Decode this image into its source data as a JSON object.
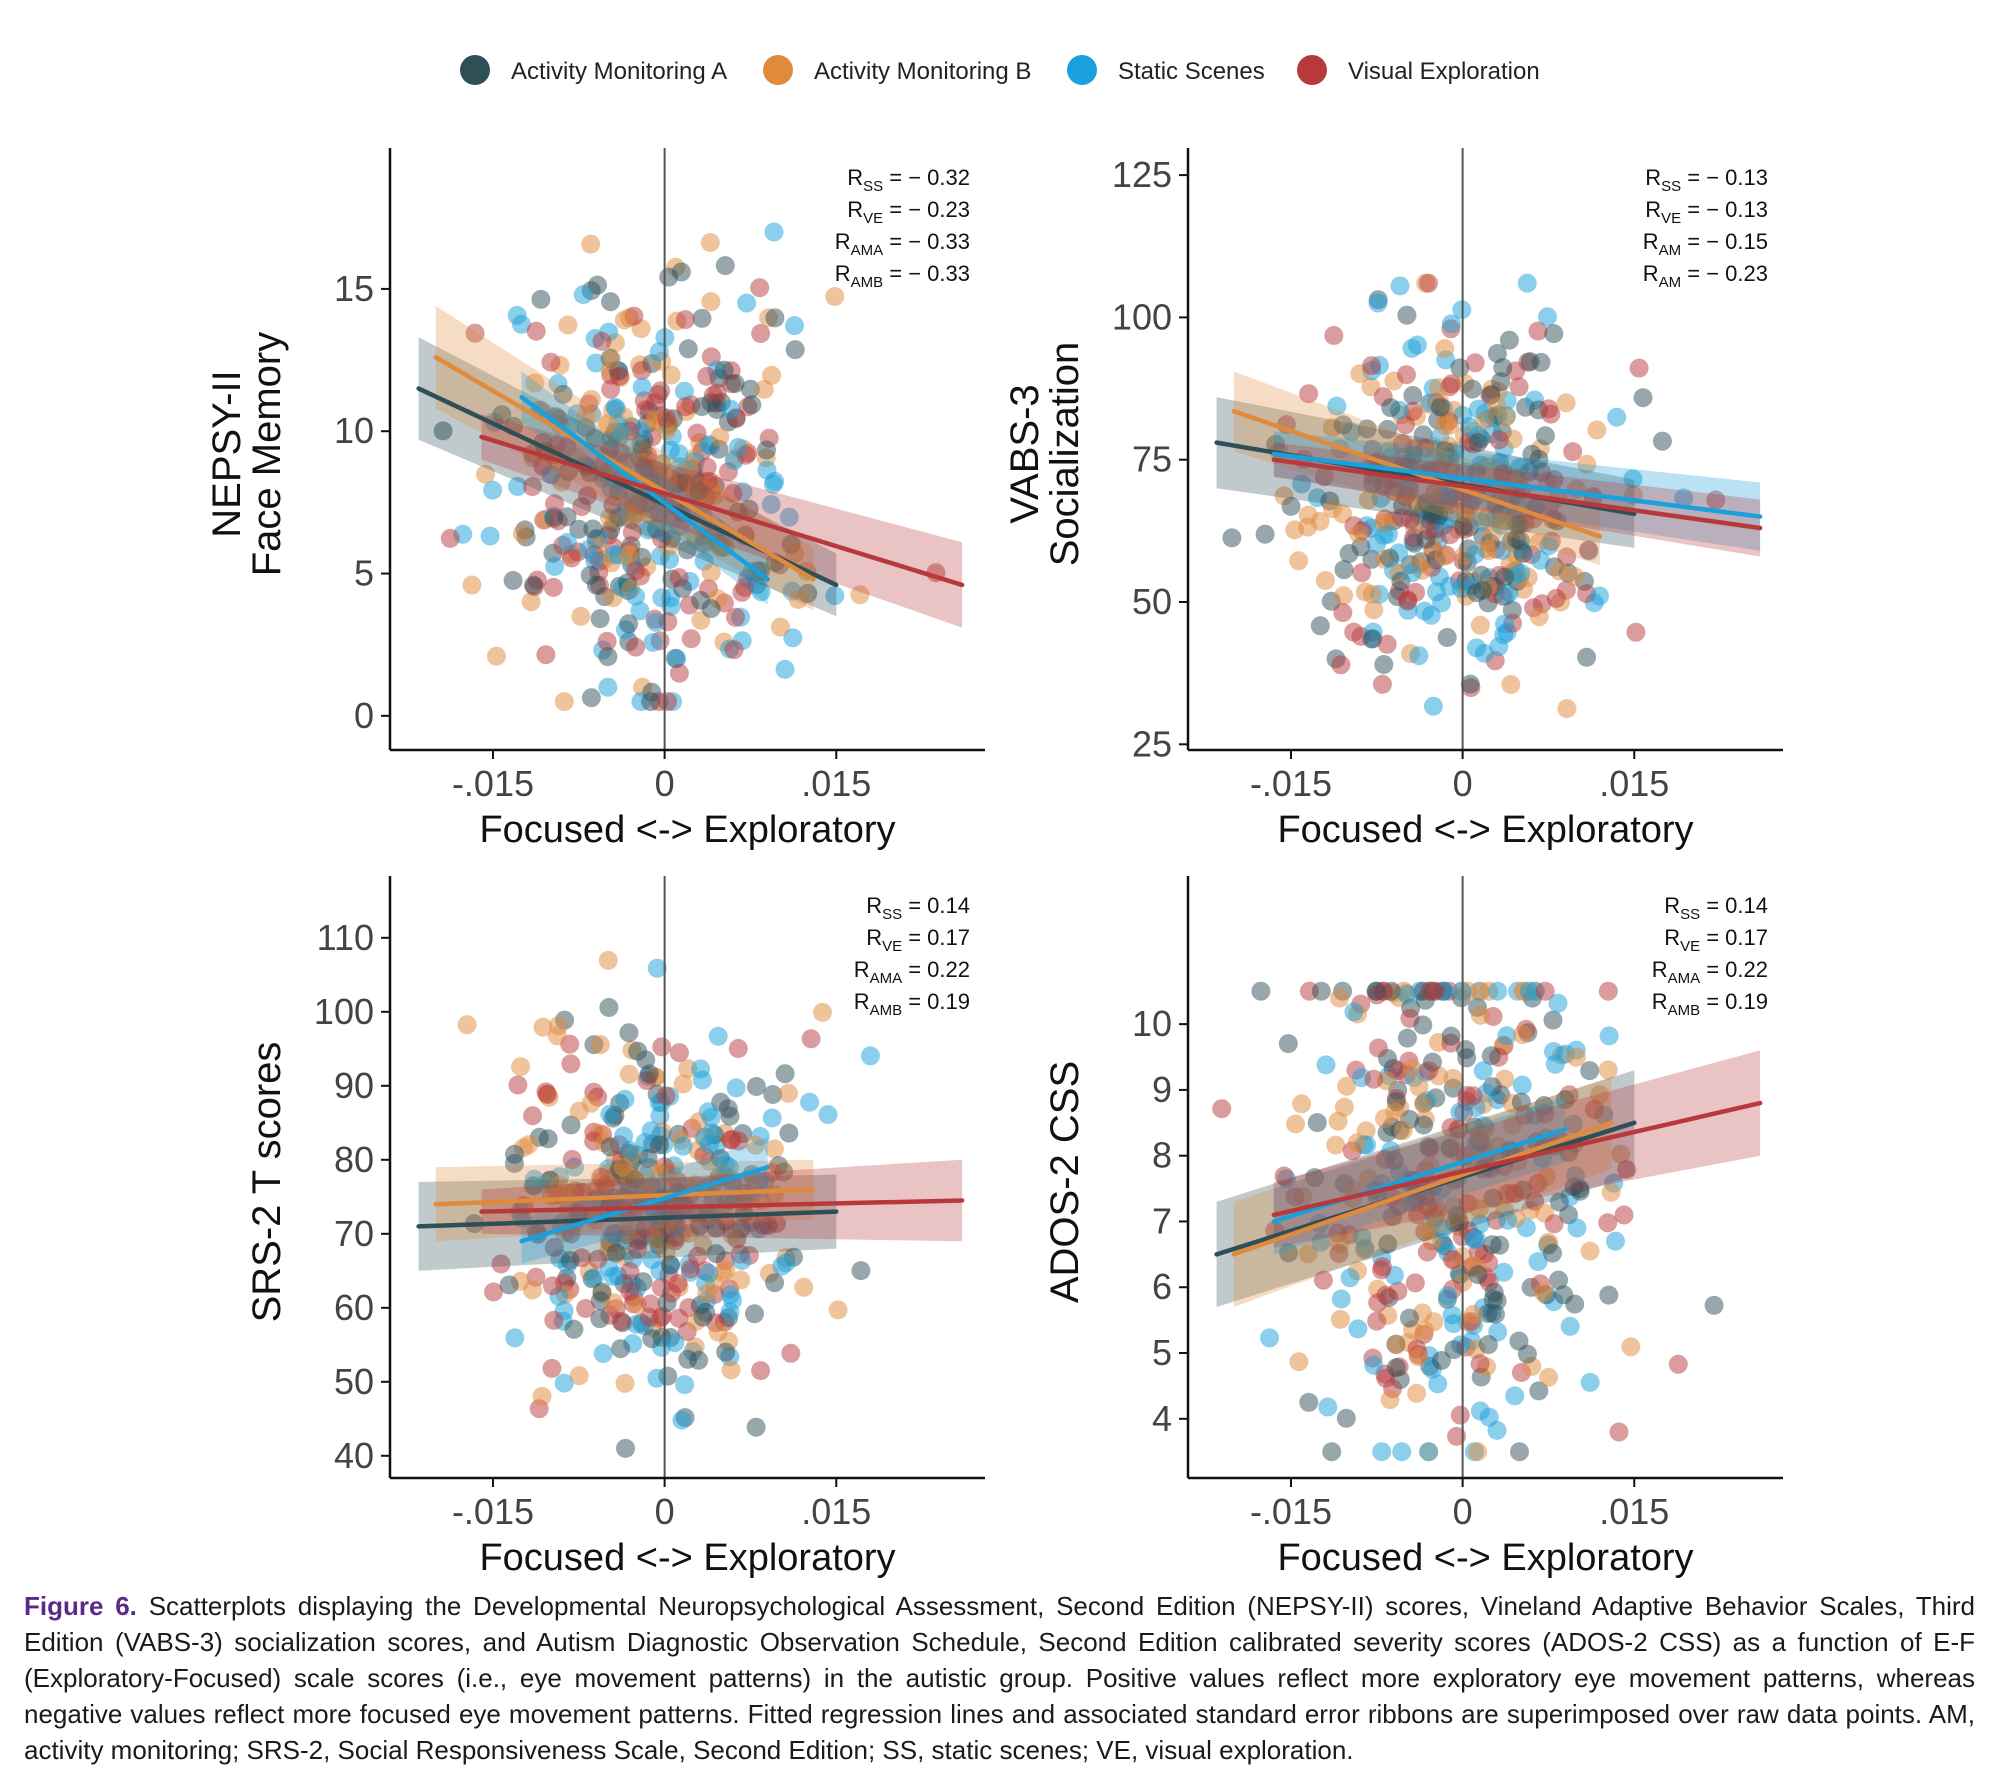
{
  "legend": [
    {
      "name": "Activity Monitoring A",
      "color": "#2f4f57"
    },
    {
      "name": "Activity Monitoring B",
      "color": "#e08a3c"
    },
    {
      "name": "Static Scenes",
      "color": "#1aa0da"
    },
    {
      "name": "Visual Exploration",
      "color": "#b8393b"
    }
  ],
  "caption": {
    "label": "Figure 6.",
    "text": "Scatterplots displaying the Developmental Neuropsychological Assessment, Second Edition (NEPSY-II) scores, Vineland Adaptive Behavior Scales, Third Edition (VABS-3) socialization scores, and Autism Diagnostic Observation Schedule, Second Edition calibrated severity scores (ADOS-2 CSS) as a function of E-F (Exploratory-Focused) scale scores (i.e., eye movement patterns) in the autistic group. Positive values reflect more exploratory eye movement patterns, whereas negative values reflect more focused eye movement patterns. Fitted regression lines and associated standard error ribbons are superimposed over raw data points. AM, activity monitoring; SRS-2, Social Responsiveness Scale, Second Edition; SS, static scenes; VE, visual exploration."
  },
  "chart_data": [
    {
      "type": "scatter",
      "ylabel": [
        "NEPSY-II",
        "Face Memory"
      ],
      "xlabel": "Focused <-> Exploratory",
      "xlim": [
        -0.024,
        0.028
      ],
      "ylim": [
        -1.2,
        19.6
      ],
      "xticks": [
        -0.015,
        0,
        0.015
      ],
      "xtick_labels": [
        "-.015",
        "0",
        ".015"
      ],
      "yticks": [
        0,
        5,
        10,
        15
      ],
      "ytick_labels": [
        "0",
        "5",
        "10",
        "15"
      ],
      "stats": [
        {
          "sym": "R",
          "sub": "SS",
          "val": "= − 0.32"
        },
        {
          "sym": "R",
          "sub": "VE",
          "val": "= − 0.23"
        },
        {
          "sym": "R",
          "sub": "AMA",
          "val": "= − 0.33"
        },
        {
          "sym": "R",
          "sub": "AMB",
          "val": "= − 0.33"
        }
      ],
      "series": [
        {
          "name": "Activity Monitoring A",
          "fit": {
            "x": [
              -0.0215,
              0.015
            ],
            "y": [
              11.5,
              4.6
            ],
            "se": [
              1.8,
              1.1
            ]
          }
        },
        {
          "name": "Activity Monitoring B",
          "fit": {
            "x": [
              -0.02,
              0.013
            ],
            "y": [
              12.6,
              4.8
            ],
            "se": [
              1.8,
              1.1
            ]
          }
        },
        {
          "name": "Static Scenes",
          "fit": {
            "x": [
              -0.0125,
              0.009
            ],
            "y": [
              11.2,
              4.8
            ],
            "se": [
              0.9,
              0.9
            ]
          }
        },
        {
          "name": "Visual Exploration",
          "fit": {
            "x": [
              -0.016,
              0.026
            ],
            "y": [
              9.8,
              4.6
            ],
            "se": [
              0.8,
              1.5
            ]
          }
        }
      ],
      "n_points": 440,
      "points_center": {
        "x": -0.001,
        "y": 7.6
      },
      "points_spread": {
        "x": 0.0065,
        "y": 3.6
      },
      "points_range": {
        "x": [
          -0.0215,
          0.026
        ],
        "y": [
          0.5,
          17
        ]
      }
    },
    {
      "type": "scatter",
      "ylabel": [
        "VABS-3",
        "Socialization"
      ],
      "xlabel": "Focused <-> Exploratory",
      "xlim": [
        -0.024,
        0.028
      ],
      "ylim": [
        24,
        128
      ],
      "xticks": [
        -0.015,
        0,
        0.015
      ],
      "xtick_labels": [
        "-.015",
        "0",
        ".015"
      ],
      "yticks": [
        25,
        50,
        75,
        100,
        125
      ],
      "ytick_labels": [
        "25",
        "50",
        "75",
        "100",
        "125"
      ],
      "stats": [
        {
          "sym": "R",
          "sub": "SS",
          "val": "= − 0.13"
        },
        {
          "sym": "R",
          "sub": "VE",
          "val": "= − 0.13"
        },
        {
          "sym": "R",
          "sub": "AM",
          "val": "= − 0.15"
        },
        {
          "sym": "R",
          "sub": "AM",
          "val": "= − 0.23"
        }
      ],
      "series": [
        {
          "name": "Activity Monitoring A",
          "fit": {
            "x": [
              -0.0215,
              0.015
            ],
            "y": [
              78,
              65.5
            ],
            "se": [
              8,
              6
            ]
          }
        },
        {
          "name": "Activity Monitoring B",
          "fit": {
            "x": [
              -0.02,
              0.012
            ],
            "y": [
              83.5,
              61.5
            ],
            "se": [
              7,
              5
            ]
          }
        },
        {
          "name": "Static Scenes",
          "fit": {
            "x": [
              -0.0165,
              0.026
            ],
            "y": [
              76,
              65
            ],
            "se": [
              4,
              6
            ]
          }
        },
        {
          "name": "Visual Exploration",
          "fit": {
            "x": [
              -0.0165,
              0.026
            ],
            "y": [
              75,
              63
            ],
            "se": [
              3,
              5
            ]
          }
        }
      ],
      "n_points": 440,
      "points_center": {
        "x": -0.001,
        "y": 69
      },
      "points_spread": {
        "x": 0.0065,
        "y": 15
      },
      "points_range": {
        "x": [
          -0.0215,
          0.026
        ],
        "y": [
          26,
          106
        ]
      }
    },
    {
      "type": "scatter",
      "ylabel": [
        "SRS-2 T scores"
      ],
      "xlabel": "Focused <-> Exploratory",
      "xlim": [
        -0.024,
        0.028
      ],
      "ylim": [
        37,
        117
      ],
      "xticks": [
        -0.015,
        0,
        0.015
      ],
      "xtick_labels": [
        "-.015",
        "0",
        ".015"
      ],
      "yticks": [
        40,
        50,
        60,
        70,
        80,
        90,
        100,
        110
      ],
      "ytick_labels": [
        "40",
        "50",
        "60",
        "70",
        "80",
        "90",
        "100",
        "110"
      ],
      "stats": [
        {
          "sym": "R",
          "sub": "SS",
          "val": "= 0.14"
        },
        {
          "sym": "R",
          "sub": "VE",
          "val": "= 0.17"
        },
        {
          "sym": "R",
          "sub": "AMA",
          "val": "= 0.22"
        },
        {
          "sym": "R",
          "sub": "AMB",
          "val": "= 0.19"
        }
      ],
      "series": [
        {
          "name": "Activity Monitoring A",
          "fit": {
            "x": [
              -0.0215,
              0.015
            ],
            "y": [
              71,
              73
            ],
            "se": [
              6,
              5
            ]
          }
        },
        {
          "name": "Activity Monitoring B",
          "fit": {
            "x": [
              -0.02,
              0.013
            ],
            "y": [
              74,
              76
            ],
            "se": [
              5,
              4
            ]
          }
        },
        {
          "name": "Static Scenes",
          "fit": {
            "x": [
              -0.0125,
              0.009
            ],
            "y": [
              69,
              79
            ],
            "se": [
              3,
              4
            ]
          }
        },
        {
          "name": "Visual Exploration",
          "fit": {
            "x": [
              -0.016,
              0.026
            ],
            "y": [
              73,
              74.5
            ],
            "se": [
              3,
              5.5
            ]
          }
        }
      ],
      "n_points": 440,
      "points_center": {
        "x": -0.001,
        "y": 73
      },
      "points_spread": {
        "x": 0.0065,
        "y": 11
      },
      "points_range": {
        "x": [
          -0.0215,
          0.026
        ],
        "y": [
          41,
          107
        ]
      }
    },
    {
      "type": "scatter",
      "ylabel": [
        "ADOS-2 CSS"
      ],
      "xlabel": "Focused <-> Exploratory",
      "xlim": [
        -0.024,
        0.028
      ],
      "ylim": [
        3.1,
        12.1
      ],
      "xticks": [
        -0.015,
        0,
        0.015
      ],
      "xtick_labels": [
        "-.015",
        "0",
        ".015"
      ],
      "yticks": [
        4,
        5,
        6,
        7,
        8,
        9,
        10
      ],
      "ytick_labels": [
        "4",
        "5",
        "6",
        "7",
        "8",
        "9",
        "10"
      ],
      "stats": [
        {
          "sym": "R",
          "sub": "SS",
          "val": "= 0.14"
        },
        {
          "sym": "R",
          "sub": "VE",
          "val": "= 0.17"
        },
        {
          "sym": "R",
          "sub": "AMA",
          "val": "= 0.22"
        },
        {
          "sym": "R",
          "sub": "AMB",
          "val": "= 0.19"
        }
      ],
      "series": [
        {
          "name": "Activity Monitoring A",
          "fit": {
            "x": [
              -0.0215,
              0.015
            ],
            "y": [
              6.5,
              8.5
            ],
            "se": [
              0.8,
              0.8
            ]
          }
        },
        {
          "name": "Activity Monitoring B",
          "fit": {
            "x": [
              -0.02,
              0.013
            ],
            "y": [
              6.5,
              8.5
            ],
            "se": [
              0.8,
              0.7
            ]
          }
        },
        {
          "name": "Static Scenes",
          "fit": {
            "x": [
              -0.0165,
              0.009
            ],
            "y": [
              7.0,
              8.4
            ],
            "se": [
              0.5,
              0.5
            ]
          }
        },
        {
          "name": "Visual Exploration",
          "fit": {
            "x": [
              -0.0165,
              0.026
            ],
            "y": [
              7.1,
              8.8
            ],
            "se": [
              0.5,
              0.8
            ]
          }
        }
      ],
      "n_points": 440,
      "points_center": {
        "x": -0.001,
        "y": 7.6
      },
      "points_spread": {
        "x": 0.0065,
        "y": 2.0
      },
      "points_range": {
        "x": [
          -0.0215,
          0.026
        ],
        "y": [
          3.5,
          10.5
        ]
      }
    }
  ]
}
